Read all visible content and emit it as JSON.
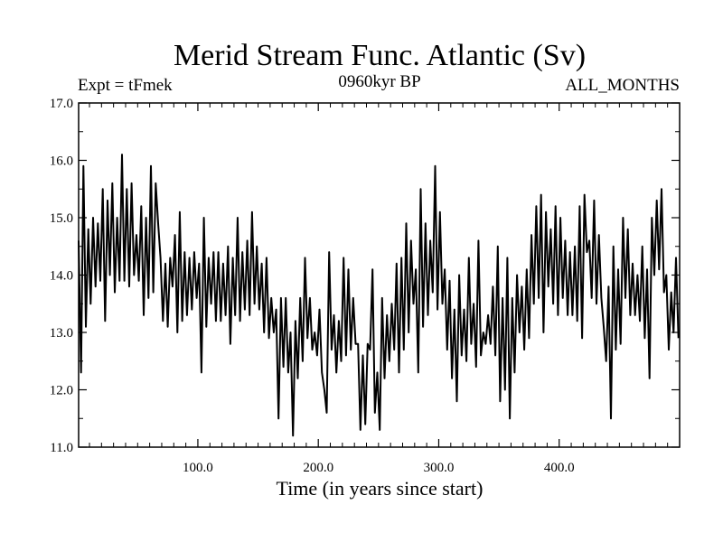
{
  "chart_data": {
    "type": "line",
    "title": "Merid Stream Func. Atlantic (Sv)",
    "subtitle_left": "Expt = tFmek",
    "subtitle_center": "0960kyr BP",
    "subtitle_right": "ALL_MONTHS",
    "xlabel": "Time (in years since start)",
    "ylabel": "",
    "xlim": [
      1,
      500
    ],
    "ylim": [
      11.0,
      17.0
    ],
    "x_ticks": [
      100,
      200,
      300,
      400
    ],
    "x_tick_labels": [
      "100.0",
      "200.0",
      "300.0",
      "400.0"
    ],
    "y_ticks": [
      11,
      12,
      13,
      14,
      15,
      16,
      17
    ],
    "y_tick_labels": [
      "11.0",
      "12.0",
      "13.0",
      "14.0",
      "15.0",
      "16.0",
      "17.0"
    ],
    "grid": false,
    "line_color": "#000000",
    "series": [
      {
        "name": "Merid Stream Func. Atlantic",
        "x_start": 1,
        "x_step": 2,
        "values": [
          14.6,
          12.3,
          15.9,
          13.1,
          14.8,
          13.5,
          15.0,
          13.8,
          14.9,
          13.9,
          15.5,
          13.2,
          15.3,
          14.0,
          15.6,
          13.7,
          15.0,
          13.9,
          16.1,
          13.9,
          15.5,
          13.8,
          15.6,
          14.0,
          14.7,
          13.9,
          15.2,
          13.3,
          15.0,
          13.6,
          15.9,
          13.7,
          15.6,
          14.9,
          14.3,
          13.2,
          14.2,
          13.1,
          14.3,
          13.8,
          14.7,
          13.0,
          15.1,
          13.2,
          14.4,
          13.3,
          14.3,
          13.4,
          14.4,
          13.6,
          14.2,
          12.3,
          15.0,
          13.1,
          14.3,
          13.5,
          14.4,
          13.2,
          14.4,
          13.2,
          14.2,
          13.3,
          14.5,
          12.8,
          14.3,
          13.3,
          15.0,
          13.2,
          14.4,
          13.4,
          14.6,
          13.3,
          15.1,
          13.5,
          14.5,
          13.4,
          14.2,
          13.0,
          14.3,
          12.9,
          13.6,
          13.0,
          13.4,
          11.5,
          13.6,
          12.4,
          13.6,
          12.3,
          13.0,
          11.2,
          13.2,
          12.2,
          13.6,
          12.5,
          14.3,
          12.9,
          13.6,
          12.7,
          13.0,
          12.6,
          13.4,
          12.3,
          12.0,
          11.6,
          14.4,
          12.7,
          13.3,
          12.3,
          13.2,
          12.5,
          14.3,
          12.6,
          14.1,
          12.7,
          13.6,
          12.8,
          12.8,
          11.3,
          12.6,
          11.4,
          12.8,
          12.7,
          14.1,
          11.6,
          12.3,
          11.3,
          13.6,
          12.2,
          13.3,
          12.5,
          13.5,
          12.7,
          14.2,
          12.3,
          14.3,
          12.7,
          14.9,
          13.0,
          14.6,
          13.5,
          14.1,
          12.3,
          15.5,
          13.1,
          14.9,
          13.3,
          14.6,
          13.7,
          15.9,
          13.4,
          15.1,
          13.5,
          14.1,
          12.7,
          13.9,
          12.2,
          13.4,
          11.8,
          14.0,
          12.6,
          13.4,
          12.5,
          14.3,
          12.8,
          13.5,
          12.4,
          14.6,
          12.6,
          13.0,
          12.8,
          13.3,
          12.8,
          13.8,
          12.6,
          14.5,
          11.8,
          13.6,
          12.0,
          14.3,
          11.5,
          13.6,
          12.3,
          14.0,
          13.0,
          13.8,
          12.7,
          14.1,
          12.9,
          14.7,
          13.5,
          15.2,
          13.6,
          15.4,
          13.0,
          15.1,
          13.8,
          14.8,
          13.5,
          15.2,
          13.3,
          15.0,
          13.6,
          14.6,
          13.3,
          14.4,
          13.3,
          14.5,
          13.2,
          15.2,
          12.9,
          15.4,
          14.4,
          14.6,
          13.6,
          15.3,
          13.5,
          14.7,
          13.6,
          13.1,
          12.5,
          13.8,
          11.5,
          14.5,
          12.7,
          14.1,
          12.8,
          15.0,
          13.6,
          14.8,
          13.3,
          14.2,
          13.3,
          14.0,
          13.2,
          14.5,
          12.9,
          14.1,
          12.2,
          15.0,
          14.0,
          15.3,
          14.1,
          15.5,
          13.7,
          14.0,
          12.7,
          13.7,
          13.0,
          14.3,
          12.9
        ]
      }
    ]
  }
}
